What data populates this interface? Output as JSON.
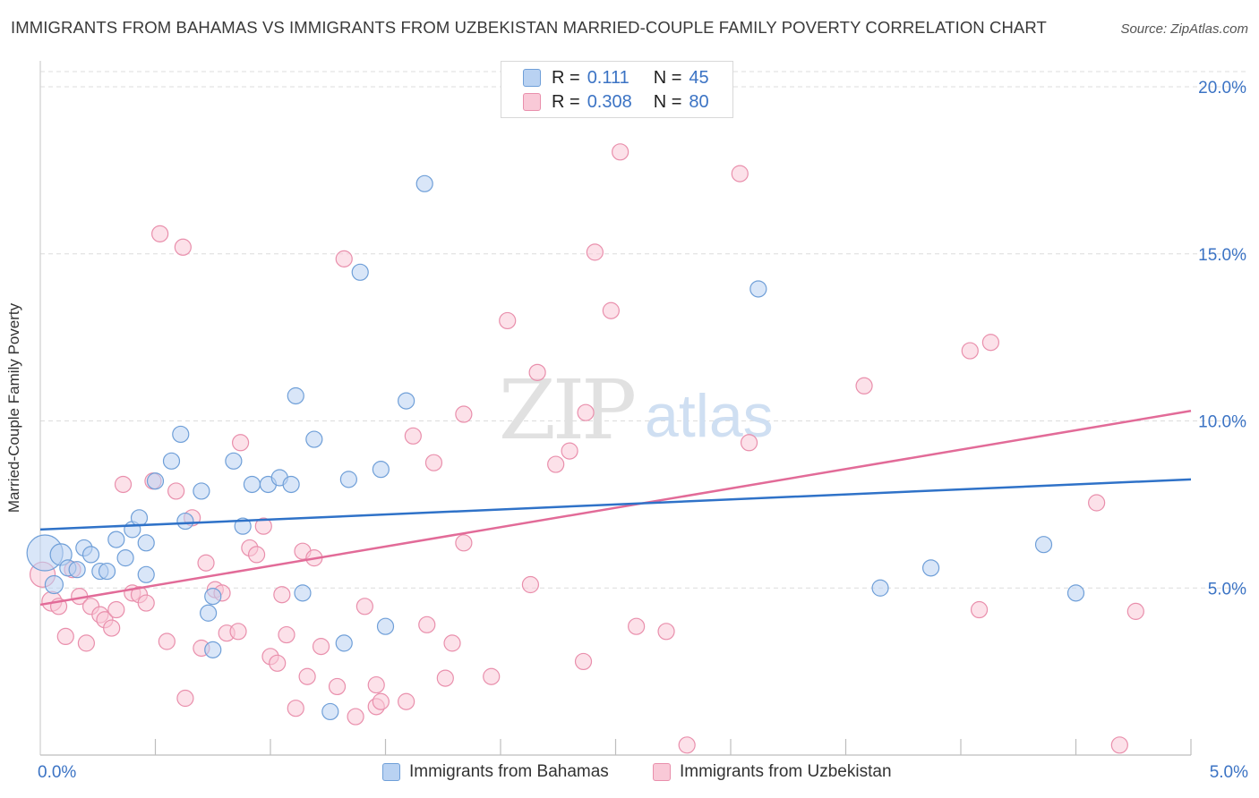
{
  "header": {
    "title": "IMMIGRANTS FROM BAHAMAS VS IMMIGRANTS FROM UZBEKISTAN MARRIED-COUPLE FAMILY POVERTY CORRELATION CHART",
    "source": "Source: ZipAtlas.com"
  },
  "watermark": {
    "zip": "ZIP",
    "atlas": "atlas"
  },
  "legend": {
    "rows": [
      {
        "r_label": "R =",
        "r_value": "0.111",
        "n_label": "N =",
        "n_value": "45"
      },
      {
        "r_label": "R =",
        "r_value": "0.308",
        "n_label": "N =",
        "n_value": "80"
      }
    ]
  },
  "colors": {
    "blue_fill": "#b9d2f2",
    "blue_stroke": "#6f9fd8",
    "blue_line": "#2f72c8",
    "pink_fill": "#f9c9d7",
    "pink_stroke": "#e98fac",
    "pink_line": "#e26b98",
    "tick_text": "#3b73c4",
    "grid": "#dcdcdc"
  },
  "chart_data": {
    "type": "scatter",
    "title": "IMMIGRANTS FROM BAHAMAS VS IMMIGRANTS FROM UZBEKISTAN MARRIED-COUPLE FAMILY POVERTY CORRELATION CHART",
    "xlabel": "",
    "ylabel": "Married-Couple Family Poverty",
    "xlim": [
      0,
      5
    ],
    "ylim": [
      0,
      20.5
    ],
    "x_ticks": [
      "0.0%",
      "5.0%"
    ],
    "y_ticks": [
      {
        "value": 5,
        "label": "5.0%"
      },
      {
        "value": 10,
        "label": "10.0%"
      },
      {
        "value": 15,
        "label": "15.0%"
      },
      {
        "value": 20,
        "label": "20.0%"
      }
    ],
    "grid": "horizontal dashed",
    "legend_position": "top-center",
    "series": [
      {
        "name": "Immigrants from Bahamas",
        "color": "blue",
        "trend": {
          "x": [
            0,
            5
          ],
          "y": [
            6.75,
            8.25
          ]
        },
        "points": [
          [
            0.02,
            6.05,
            20
          ],
          [
            0.09,
            6.0,
            12
          ],
          [
            0.06,
            5.1,
            10
          ],
          [
            0.12,
            5.6,
            9
          ],
          [
            0.16,
            5.55,
            9
          ],
          [
            0.19,
            6.2,
            9
          ],
          [
            0.22,
            6.0,
            9
          ],
          [
            0.26,
            5.5,
            9
          ],
          [
            0.29,
            5.5,
            9
          ],
          [
            0.33,
            6.45,
            9
          ],
          [
            0.37,
            5.9,
            9
          ],
          [
            0.4,
            6.75,
            9
          ],
          [
            0.43,
            7.1,
            9
          ],
          [
            0.46,
            6.35,
            9
          ],
          [
            0.46,
            5.4,
            9
          ],
          [
            0.5,
            8.2,
            9
          ],
          [
            0.57,
            8.8,
            9
          ],
          [
            0.61,
            9.6,
            9
          ],
          [
            0.63,
            7.0,
            9
          ],
          [
            0.7,
            7.9,
            9
          ],
          [
            0.73,
            4.25,
            9
          ],
          [
            0.75,
            4.75,
            9
          ],
          [
            0.75,
            3.15,
            9
          ],
          [
            0.84,
            8.8,
            9
          ],
          [
            0.88,
            6.85,
            9
          ],
          [
            0.92,
            8.1,
            9
          ],
          [
            0.99,
            8.1,
            9
          ],
          [
            1.04,
            8.3,
            9
          ],
          [
            1.09,
            8.1,
            9
          ],
          [
            1.11,
            10.75,
            9
          ],
          [
            1.14,
            4.85,
            9
          ],
          [
            1.19,
            9.45,
            9
          ],
          [
            1.26,
            1.3,
            9
          ],
          [
            1.32,
            3.35,
            9
          ],
          [
            1.34,
            8.25,
            9
          ],
          [
            1.39,
            14.45,
            9
          ],
          [
            1.48,
            8.55,
            9
          ],
          [
            1.5,
            3.85,
            9
          ],
          [
            1.59,
            10.6,
            9
          ],
          [
            1.67,
            17.1,
            9
          ],
          [
            3.12,
            13.95,
            9
          ],
          [
            3.65,
            5.0,
            9
          ],
          [
            3.87,
            5.6,
            9
          ],
          [
            4.36,
            6.3,
            9
          ],
          [
            4.5,
            4.85,
            9
          ]
        ]
      },
      {
        "name": "Immigrants from Uzbekistan",
        "color": "pink",
        "trend": {
          "x": [
            0,
            5
          ],
          "y": [
            4.5,
            10.3
          ]
        },
        "points": [
          [
            0.01,
            5.4,
            14
          ],
          [
            0.05,
            4.6,
            11
          ],
          [
            0.08,
            4.45,
            9
          ],
          [
            0.11,
            3.55,
            9
          ],
          [
            0.14,
            5.55,
            9
          ],
          [
            0.17,
            4.75,
            9
          ],
          [
            0.2,
            3.35,
            9
          ],
          [
            0.22,
            4.45,
            9
          ],
          [
            0.26,
            4.2,
            9
          ],
          [
            0.28,
            4.05,
            9
          ],
          [
            0.31,
            3.8,
            9
          ],
          [
            0.33,
            4.35,
            9
          ],
          [
            0.36,
            8.1,
            9
          ],
          [
            0.4,
            4.85,
            9
          ],
          [
            0.43,
            4.8,
            9
          ],
          [
            0.46,
            4.55,
            9
          ],
          [
            0.49,
            8.2,
            9
          ],
          [
            0.52,
            15.6,
            9
          ],
          [
            0.55,
            3.4,
            9
          ],
          [
            0.59,
            7.9,
            9
          ],
          [
            0.62,
            15.2,
            9
          ],
          [
            0.63,
            1.7,
            9
          ],
          [
            0.66,
            7.1,
            9
          ],
          [
            0.7,
            3.2,
            9
          ],
          [
            0.72,
            5.75,
            9
          ],
          [
            0.76,
            4.95,
            9
          ],
          [
            0.79,
            4.85,
            9
          ],
          [
            0.81,
            3.65,
            9
          ],
          [
            0.86,
            3.7,
            9
          ],
          [
            0.87,
            9.35,
            9
          ],
          [
            0.91,
            6.2,
            9
          ],
          [
            0.94,
            6.0,
            9
          ],
          [
            0.97,
            6.85,
            9
          ],
          [
            1.0,
            2.95,
            9
          ],
          [
            1.03,
            2.75,
            9
          ],
          [
            1.05,
            4.8,
            9
          ],
          [
            1.07,
            3.6,
            9
          ],
          [
            1.11,
            1.4,
            9
          ],
          [
            1.14,
            6.1,
            9
          ],
          [
            1.16,
            2.35,
            9
          ],
          [
            1.19,
            5.9,
            9
          ],
          [
            1.22,
            3.25,
            9
          ],
          [
            1.29,
            2.05,
            9
          ],
          [
            1.32,
            14.85,
            9
          ],
          [
            1.37,
            1.15,
            9
          ],
          [
            1.41,
            4.45,
            9
          ],
          [
            1.46,
            1.45,
            9
          ],
          [
            1.46,
            2.1,
            9
          ],
          [
            1.48,
            1.6,
            9
          ],
          [
            1.59,
            1.6,
            9
          ],
          [
            1.62,
            9.55,
            9
          ],
          [
            1.68,
            3.9,
            9
          ],
          [
            1.71,
            8.75,
            9
          ],
          [
            1.76,
            2.3,
            9
          ],
          [
            1.79,
            3.35,
            9
          ],
          [
            1.84,
            6.35,
            9
          ],
          [
            1.84,
            10.2,
            9
          ],
          [
            1.96,
            2.35,
            9
          ],
          [
            2.03,
            13.0,
            9
          ],
          [
            2.13,
            5.1,
            9
          ],
          [
            2.16,
            11.45,
            9
          ],
          [
            2.24,
            8.7,
            9
          ],
          [
            2.3,
            9.1,
            9
          ],
          [
            2.36,
            2.8,
            9
          ],
          [
            2.37,
            10.25,
            9
          ],
          [
            2.41,
            15.05,
            9
          ],
          [
            2.48,
            13.3,
            9
          ],
          [
            2.52,
            18.05,
            9
          ],
          [
            2.59,
            3.85,
            9
          ],
          [
            2.72,
            3.7,
            9
          ],
          [
            3.04,
            17.4,
            9
          ],
          [
            3.08,
            9.35,
            9
          ],
          [
            3.58,
            11.05,
            9
          ],
          [
            4.04,
            12.1,
            9
          ],
          [
            4.08,
            4.35,
            9
          ],
          [
            4.13,
            12.35,
            9
          ],
          [
            4.59,
            7.55,
            9
          ],
          [
            4.76,
            4.3,
            9
          ],
          [
            4.69,
            0.3,
            9
          ],
          [
            2.81,
            0.3,
            9
          ]
        ]
      }
    ]
  }
}
